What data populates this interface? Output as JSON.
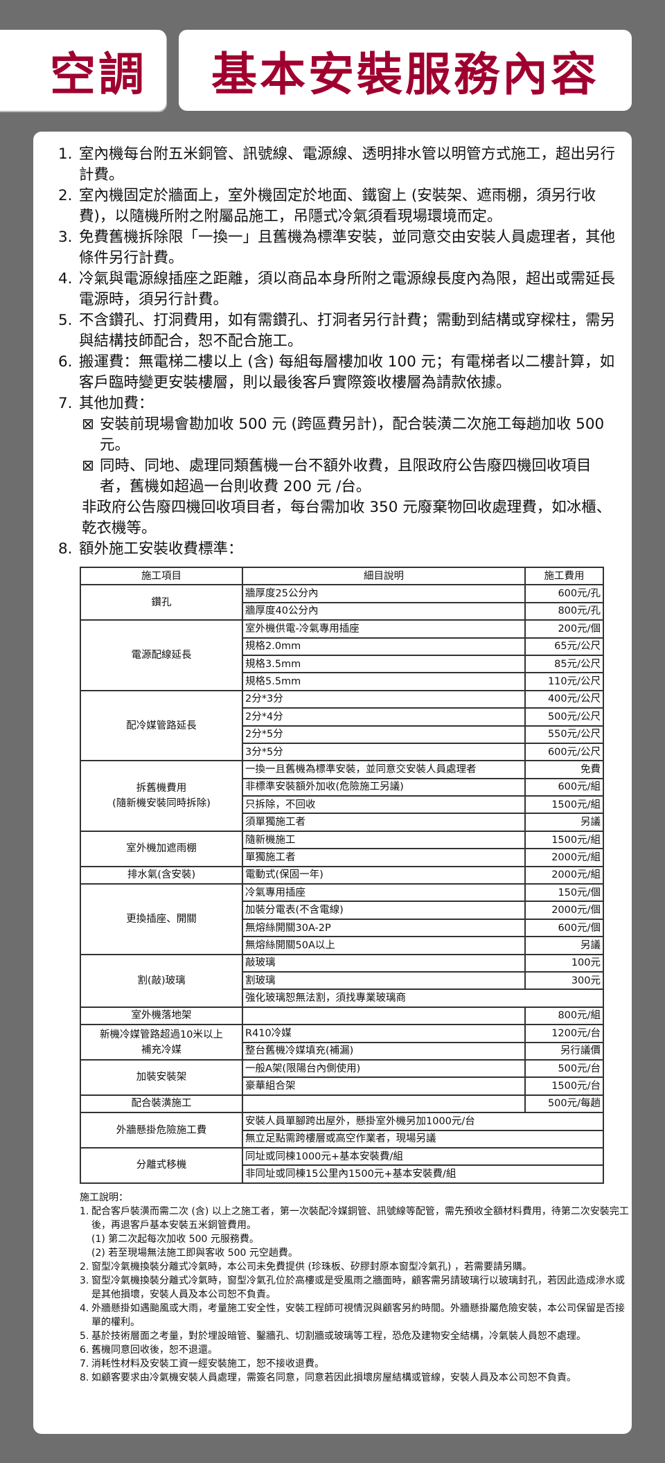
{
  "header": {
    "left_title": "空調",
    "right_title": "基本安裝服務內容"
  },
  "items": [
    {
      "num": "1.",
      "text": "室內機每台附五米銅管、訊號線、電源線、透明排水管以明管方式施工，超出另行計費。"
    },
    {
      "num": "2.",
      "text": "室內機固定於牆面上，室外機固定於地面、鐵窗上 (安裝架、遮雨棚，須另行收費)，以隨機所附之附屬品施工，吊隱式冷氣須看現場環境而定。"
    },
    {
      "num": "3.",
      "text": "免費舊機拆除限「一換一」且舊機為標準安裝，並同意交由安裝人員處理者，其他條件另行計費。"
    },
    {
      "num": "4.",
      "text": "冷氣與電源線插座之距離，須以商品本身所附之電源線長度內為限，超出或需延長電源時，須另行計費。"
    },
    {
      "num": "5.",
      "text": "不含鑽孔、打洞費用，如有需鑽孔、打洞者另行計費；需動到結構或穿樑柱，需另與結構技師配合，恕不配合施工。"
    },
    {
      "num": "6.",
      "text": "搬運費：無電梯二樓以上 (含) 每組每層樓加收 100 元；有電梯者以二樓計算，如客戶臨時變更安裝樓層，則以最後客戶實際簽收樓層為請款依據。"
    },
    {
      "num": "7.",
      "text": "其他加費："
    }
  ],
  "sub_items": [
    {
      "bullet": "⊠",
      "text": "安裝前現場會勘加收 500 元 (跨區費另計)，配合裝潢二次施工每趟加收 500 元。"
    },
    {
      "bullet": "⊠",
      "text": "同時、同地、處理同類舊機一台不額外收費，且限政府公告廢四機回收項目者，舊機如超過一台則收費 200 元 /台。"
    }
  ],
  "sub_continuation": "非政府公告廢四機回收項目者，每台需加收 350 元廢棄物回收處理費，如冰櫃、乾衣機等。",
  "item8": {
    "num": "8.",
    "text": "額外施工安裝收費標準："
  },
  "table": {
    "headers": [
      "施工項目",
      "細目說明",
      "施工費用"
    ],
    "groups": [
      {
        "item": "鑽孔",
        "rows": [
          [
            "牆厚度25公分內",
            "600元/孔"
          ],
          [
            "牆厚度40公分內",
            "800元/孔"
          ]
        ]
      },
      {
        "item": "電源配線延長",
        "rows": [
          [
            "室外機供電-冷氣專用插座",
            "200元/個"
          ],
          [
            "規格2.0mm",
            "65元/公尺"
          ],
          [
            "規格3.5mm",
            "85元/公尺"
          ],
          [
            "規格5.5mm",
            "110元/公尺"
          ]
        ]
      },
      {
        "item": "配冷媒管路延長",
        "rows": [
          [
            "2分*3分",
            "400元/公尺"
          ],
          [
            "2分*4分",
            "500元/公尺"
          ],
          [
            "2分*5分",
            "550元/公尺"
          ],
          [
            "3分*5分",
            "600元/公尺"
          ]
        ]
      },
      {
        "item": "拆舊機費用\n(隨新機安裝同時拆除)",
        "rows": [
          [
            "一換一且舊機為標準安裝，並同意交安裝人員處理者",
            "免費"
          ],
          [
            "非標準安裝額外加收(危險施工另議)",
            "600元/組"
          ],
          [
            "只拆除，不回收",
            "1500元/組"
          ],
          [
            "須單獨施工者",
            "另議"
          ]
        ]
      },
      {
        "item": "室外機加遮雨棚",
        "rows": [
          [
            "隨新機施工",
            "1500元/組"
          ],
          [
            "單獨施工者",
            "2000元/組"
          ]
        ]
      },
      {
        "item": "排水氣(含安裝)",
        "rows": [
          [
            "電動式(保固一年)",
            "2000元/組"
          ]
        ]
      },
      {
        "item": "更換插座、開關",
        "rows": [
          [
            "冷氣專用插座",
            "150元/個"
          ],
          [
            "加裝分電表(不含電線)",
            "2000元/個"
          ],
          [
            "無熔絲開關30A-2P",
            "600元/個"
          ],
          [
            "無熔絲開關50A以上",
            "另議"
          ]
        ]
      },
      {
        "item": "割(敲)玻璃",
        "rows": [
          [
            "敲玻璃",
            "100元"
          ],
          [
            "割玻璃",
            "300元"
          ],
          [
            "強化玻璃恕無法割，須找專業玻璃商",
            null
          ]
        ]
      },
      {
        "item": "室外機落地架",
        "rows": [
          [
            "",
            "800元/組"
          ]
        ]
      },
      {
        "item": "新機冷媒管路超過10米以上\n補充冷媒",
        "rows": [
          [
            "R410冷媒",
            "1200元/台"
          ],
          [
            "整台舊機冷媒填充(補漏)",
            "另行議價"
          ]
        ]
      },
      {
        "item": "加裝安裝架",
        "rows": [
          [
            "一般A架(限陽台內側使用)",
            "500元/台"
          ],
          [
            "豪華組合架",
            "1500元/台"
          ]
        ]
      },
      {
        "item": "配合裝潢施工",
        "rows": [
          [
            "",
            "500元/每趟"
          ]
        ]
      },
      {
        "item": "外牆懸掛危險施工費",
        "rows": [
          [
            "安裝人員單腳跨出屋外，懸掛室外機另加1000元/台",
            null
          ],
          [
            "無立足點需跨樓層或高空作業者，現場另議",
            null
          ]
        ]
      },
      {
        "item": "分離式移機",
        "rows": [
          [
            "同址或同棟1000元+基本安裝費/組",
            null
          ],
          [
            "非同址或同棟15公里內1500元+基本安裝費/組",
            null
          ]
        ]
      }
    ]
  },
  "notes": {
    "title": "施工說明：",
    "items": [
      {
        "num": "1.",
        "text": "配合客戶裝潢而需二次 (含) 以上之施工者，第一次裝配冷媒銅管、訊號線等配管，需先預收全額材料費用，待第二次安裝完工後，再退客戶基本安裝五米銅管費用。",
        "subs": [
          "(1) 第二次起每次加收 500 元服務費。",
          "(2) 若至現場無法施工即與客收 500 元空趟費。"
        ]
      },
      {
        "num": "2.",
        "text": "窗型冷氣機換裝分離式冷氣時，本公司未免費提供 (珍珠板、矽膠封原本窗型冷氣孔) ，若需要請另購。"
      },
      {
        "num": "3.",
        "text": "窗型冷氣機換裝分離式冷氣時，窗型冷氣孔位於高樓或是受風雨之牆面時，顧客需另請玻璃行以玻璃封孔，若因此造成滲水或是其他損壞，安裝人員及本公司恕不負責。"
      },
      {
        "num": "4.",
        "text": "外牆懸掛如遇颱風或大雨，考量施工安全性，安裝工程師可視情況與顧客另約時間。外牆懸掛屬危險安裝，本公司保留是否接單的權利。"
      },
      {
        "num": "5.",
        "text": "基於技術層面之考量，對於埋設暗管、鑿牆孔、切割牆或玻璃等工程，恐危及建物安全結構，冷氣裝人員恕不處理。"
      },
      {
        "num": "6.",
        "text": "舊機同意回收後，恕不退還。"
      },
      {
        "num": "7.",
        "text": "消耗性材料及安裝工資一經安裝施工，恕不接收退費。"
      },
      {
        "num": "8.",
        "text": "如顧客要求由冷氣機安裝人員處理，需簽名同意，同意若因此損壞房屋結構或管線，安裝人員及本公司恕不負責。"
      }
    ]
  },
  "colors": {
    "background": "#6e6e6e",
    "title": "#a0002f",
    "panel": "#ffffff"
  }
}
